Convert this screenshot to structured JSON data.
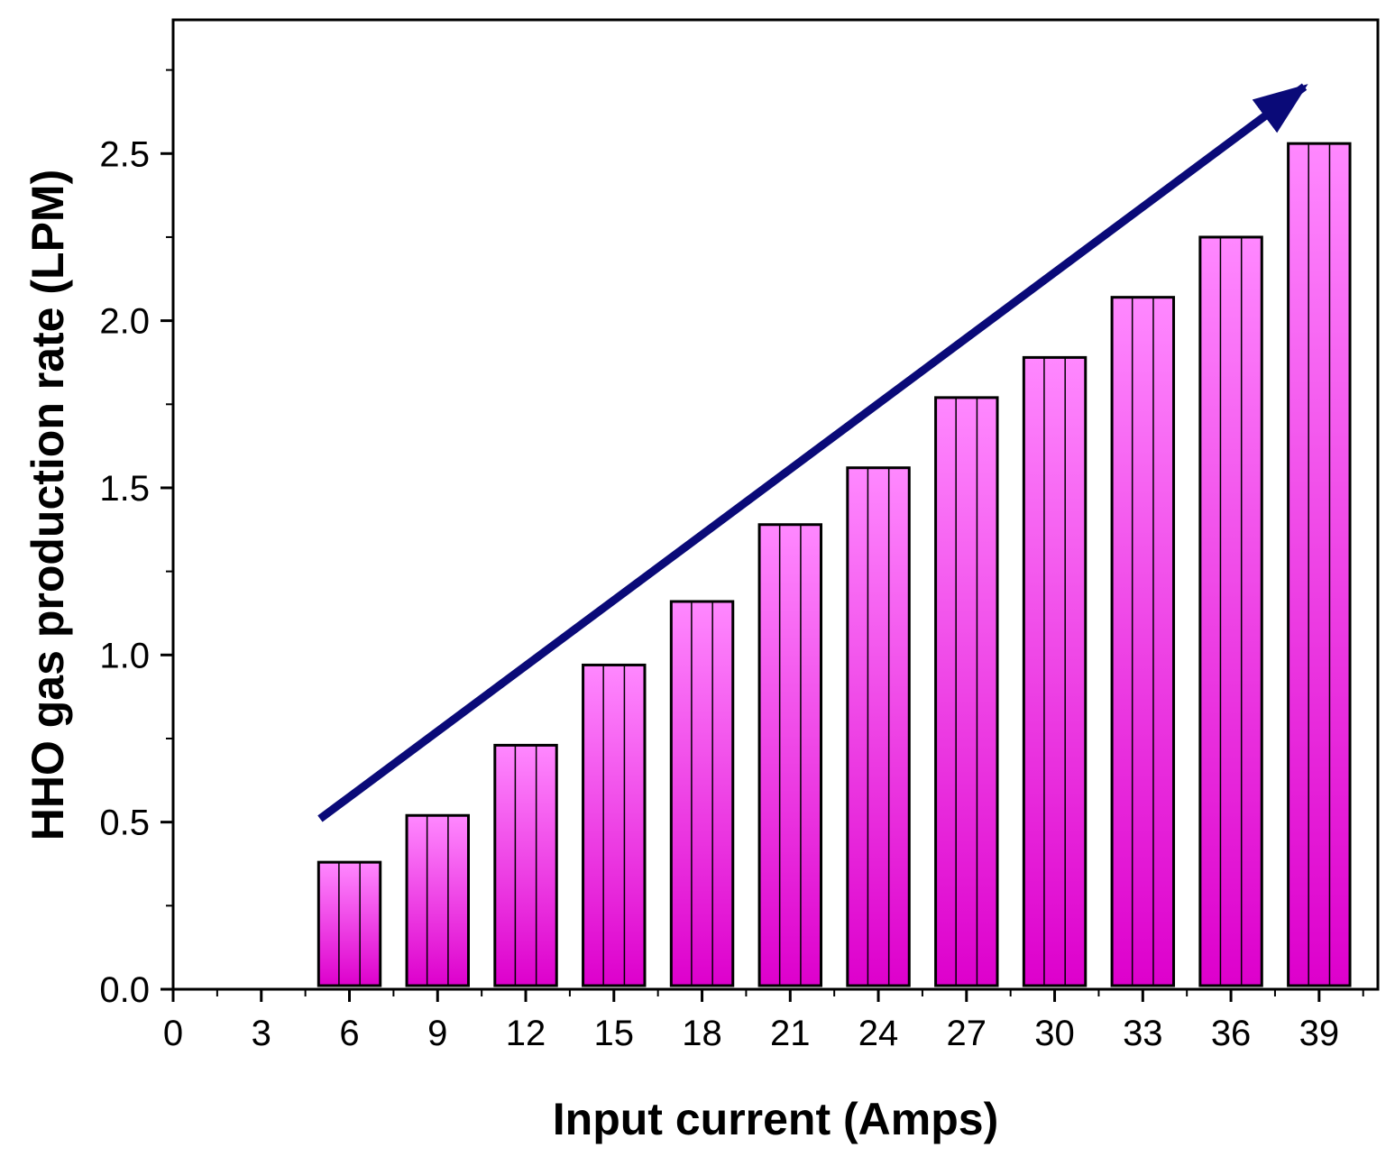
{
  "chart_data": {
    "type": "bar",
    "title": "",
    "xlabel": "Input current (Amps)",
    "ylabel": "HHO gas production rate (LPM)",
    "x": [
      6,
      9,
      12,
      15,
      18,
      21,
      24,
      27,
      30,
      33,
      36,
      39
    ],
    "values": [
      0.38,
      0.52,
      0.73,
      0.97,
      1.16,
      1.39,
      1.56,
      1.77,
      1.89,
      2.07,
      2.25,
      2.53
    ],
    "xlim": [
      0,
      41
    ],
    "ylim": [
      0,
      2.9
    ],
    "xticks": [
      "0",
      "3",
      "6",
      "9",
      "12",
      "15",
      "18",
      "21",
      "24",
      "27",
      "30",
      "33",
      "36",
      "39"
    ],
    "yticks": [
      "0.0",
      "0.5",
      "1.0",
      "1.5",
      "2.0",
      "2.5"
    ],
    "legend": "none",
    "grid": false,
    "annotation": {
      "type": "trend-arrow",
      "start": [
        5,
        0.51
      ],
      "end": [
        38.5,
        2.7
      ],
      "color": "#0a0a78"
    },
    "colors": {
      "bar_top": "#ff88ff",
      "bar_bottom": "#dd00cc",
      "bar_edge": "#000000",
      "arrow": "#0a0a78"
    }
  }
}
